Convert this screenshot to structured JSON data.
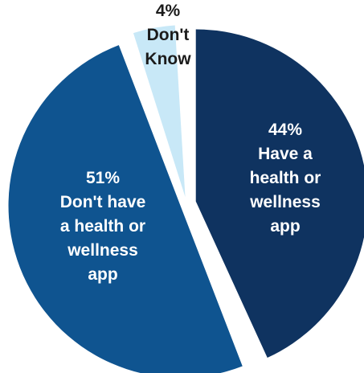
{
  "chart_data": {
    "type": "pie",
    "title": "",
    "exploded": true,
    "slices": [
      {
        "label": "Have a health or wellness app",
        "value": 44,
        "value_text": "44%",
        "text_lines": [
          "Have a",
          "health or",
          "wellness",
          "app"
        ],
        "color": "#0f3360",
        "text_color": "#ffffff"
      },
      {
        "label": "Don't have a health or wellness app",
        "value": 51,
        "value_text": "51%",
        "text_lines": [
          "Don't have",
          "a health or",
          "wellness",
          "app"
        ],
        "color": "#0f5490",
        "text_color": "#ffffff"
      },
      {
        "label": "Don't Know",
        "value": 4,
        "value_text": "4%",
        "text_lines": [
          "Don't",
          "Know"
        ],
        "color": "#c8e8f7",
        "text_color": "#1b1b1b"
      }
    ]
  }
}
